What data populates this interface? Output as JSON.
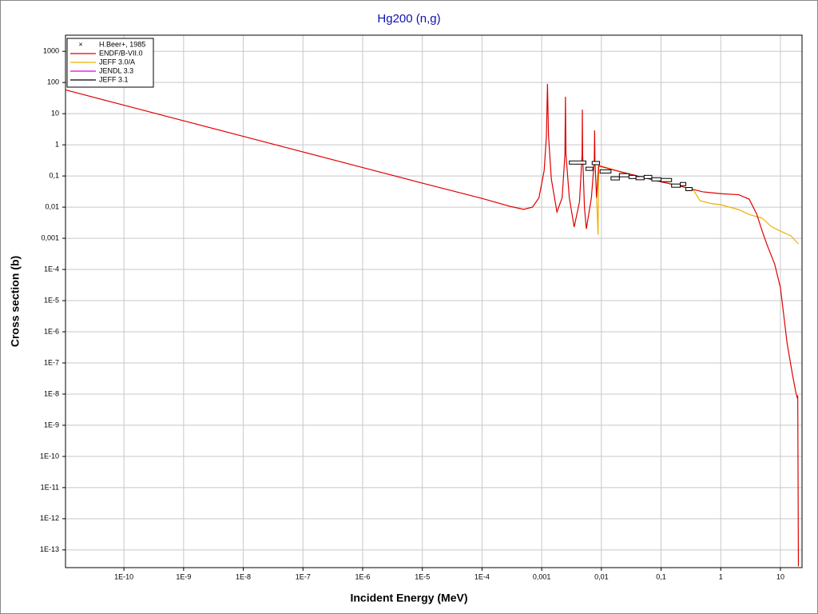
{
  "chart_data": {
    "type": "line",
    "title": "Hg200 (n,g)",
    "x_label": "Incident Energy (MeV)",
    "y_label": "Cross section (b)",
    "log_x": true,
    "log_y": true,
    "grid": true,
    "legend": "upper left",
    "xlim": [
      1.05e-11,
      23
    ],
    "ylim": [
      2.7e-14,
      3300
    ],
    "xticks": [
      {
        "value": 1e-10,
        "label": "1E-10"
      },
      {
        "value": 1e-09,
        "label": "1E-9"
      },
      {
        "value": 1e-08,
        "label": "1E-8"
      },
      {
        "value": 1e-07,
        "label": "1E-7"
      },
      {
        "value": 1e-06,
        "label": "1E-6"
      },
      {
        "value": 1e-05,
        "label": "1E-5"
      },
      {
        "value": 0.0001,
        "label": "1E-4"
      },
      {
        "value": 0.001,
        "label": "0,001"
      },
      {
        "value": 0.01,
        "label": "0,01"
      },
      {
        "value": 0.1,
        "label": "0,1"
      },
      1,
      10
    ],
    "yticks": [
      1000,
      100,
      10,
      1,
      {
        "value": 0.1,
        "label": "0,1"
      },
      {
        "value": 0.01,
        "label": "0,01"
      },
      {
        "value": 0.001,
        "label": "0,001"
      },
      {
        "value": 0.0001,
        "label": "1E-4"
      },
      {
        "value": 1e-05,
        "label": "1E-5"
      },
      {
        "value": 1e-06,
        "label": "1E-6"
      },
      {
        "value": 1e-07,
        "label": "1E-7"
      },
      {
        "value": 1e-08,
        "label": "1E-8"
      },
      {
        "value": 1e-09,
        "label": "1E-9"
      },
      {
        "value": 1e-10,
        "label": "1E-10"
      },
      {
        "value": 1e-11,
        "label": "1E-11"
      },
      {
        "value": 1e-12,
        "label": "1E-12"
      },
      {
        "value": 1e-13,
        "label": "1E-13"
      }
    ],
    "experiment": {
      "name": "H.Beer+, 1985",
      "color": "#000000",
      "x_low": [
        0.0029,
        0.0055,
        0.007,
        0.0095,
        0.0145,
        0.02,
        0.029,
        0.038,
        0.052,
        0.07,
        0.1,
        0.15,
        0.21,
        0.26
      ],
      "x_high": [
        0.0055,
        0.0072,
        0.0093,
        0.0145,
        0.02,
        0.029,
        0.038,
        0.052,
        0.07,
        0.1,
        0.15,
        0.21,
        0.26,
        0.33
      ],
      "values": [
        0.27,
        0.17,
        0.26,
        0.14,
        0.084,
        0.106,
        0.093,
        0.085,
        0.093,
        0.078,
        0.074,
        0.049,
        0.055,
        0.038
      ]
    },
    "series": [
      {
        "name": "ENDF/B-VII.0",
        "color": "#e00000",
        "x": [
          1.05e-11,
          1e-10,
          1e-09,
          1e-08,
          1e-07,
          1e-06,
          1e-05,
          0.0001,
          0.0003,
          0.0005,
          0.0007,
          0.0009,
          0.0011,
          0.0012,
          0.00125,
          0.0013,
          0.00145,
          0.0018,
          0.0022,
          0.00245,
          0.0025,
          0.00255,
          0.0029,
          0.0035,
          0.0043,
          0.00475,
          0.0048,
          0.00485,
          0.0052,
          0.0056,
          0.0068,
          0.0076,
          0.0077,
          0.0078,
          0.0083,
          0.009,
          0.02,
          0.05,
          0.1,
          0.2,
          0.5,
          1,
          2,
          3,
          4,
          5,
          6,
          8,
          10,
          13,
          16,
          18,
          19,
          19.5,
          20
        ],
        "values": [
          58,
          18.7,
          5.9,
          1.87,
          0.59,
          0.187,
          0.059,
          0.019,
          0.0105,
          0.0085,
          0.01,
          0.02,
          0.15,
          2,
          90,
          2,
          0.08,
          0.007,
          0.02,
          0.5,
          35,
          0.5,
          0.02,
          0.0023,
          0.015,
          0.5,
          13.5,
          0.5,
          0.01,
          0.002,
          0.02,
          0.3,
          2.9,
          0.3,
          0.02,
          0.21,
          0.14,
          0.09,
          0.065,
          0.048,
          0.031,
          0.027,
          0.025,
          0.018,
          0.006,
          0.0016,
          0.0006,
          0.00015,
          2.6e-05,
          4e-07,
          4e-08,
          1.2e-08,
          8e-09,
          9e-09,
          3e-14
        ]
      },
      {
        "name": "JEFF 3.0/A",
        "color": "#f0b000",
        "x": [
          0.0083,
          0.0088,
          0.009,
          0.02,
          0.05,
          0.1,
          0.2,
          0.35,
          0.45,
          0.7,
          1,
          2,
          3,
          5,
          7,
          10,
          15,
          20
        ],
        "values": [
          0.02,
          0.0013,
          0.22,
          0.14,
          0.09,
          0.066,
          0.05,
          0.035,
          0.016,
          0.013,
          0.012,
          0.0083,
          0.0058,
          0.0044,
          0.0024,
          0.0017,
          0.0012,
          0.00066
        ]
      },
      {
        "name": "JENDL 3.3",
        "color": "#e000e0",
        "x": [],
        "values": []
      },
      {
        "name": "JEFF 3.1",
        "color": "#000000",
        "x": [],
        "values": []
      }
    ]
  }
}
